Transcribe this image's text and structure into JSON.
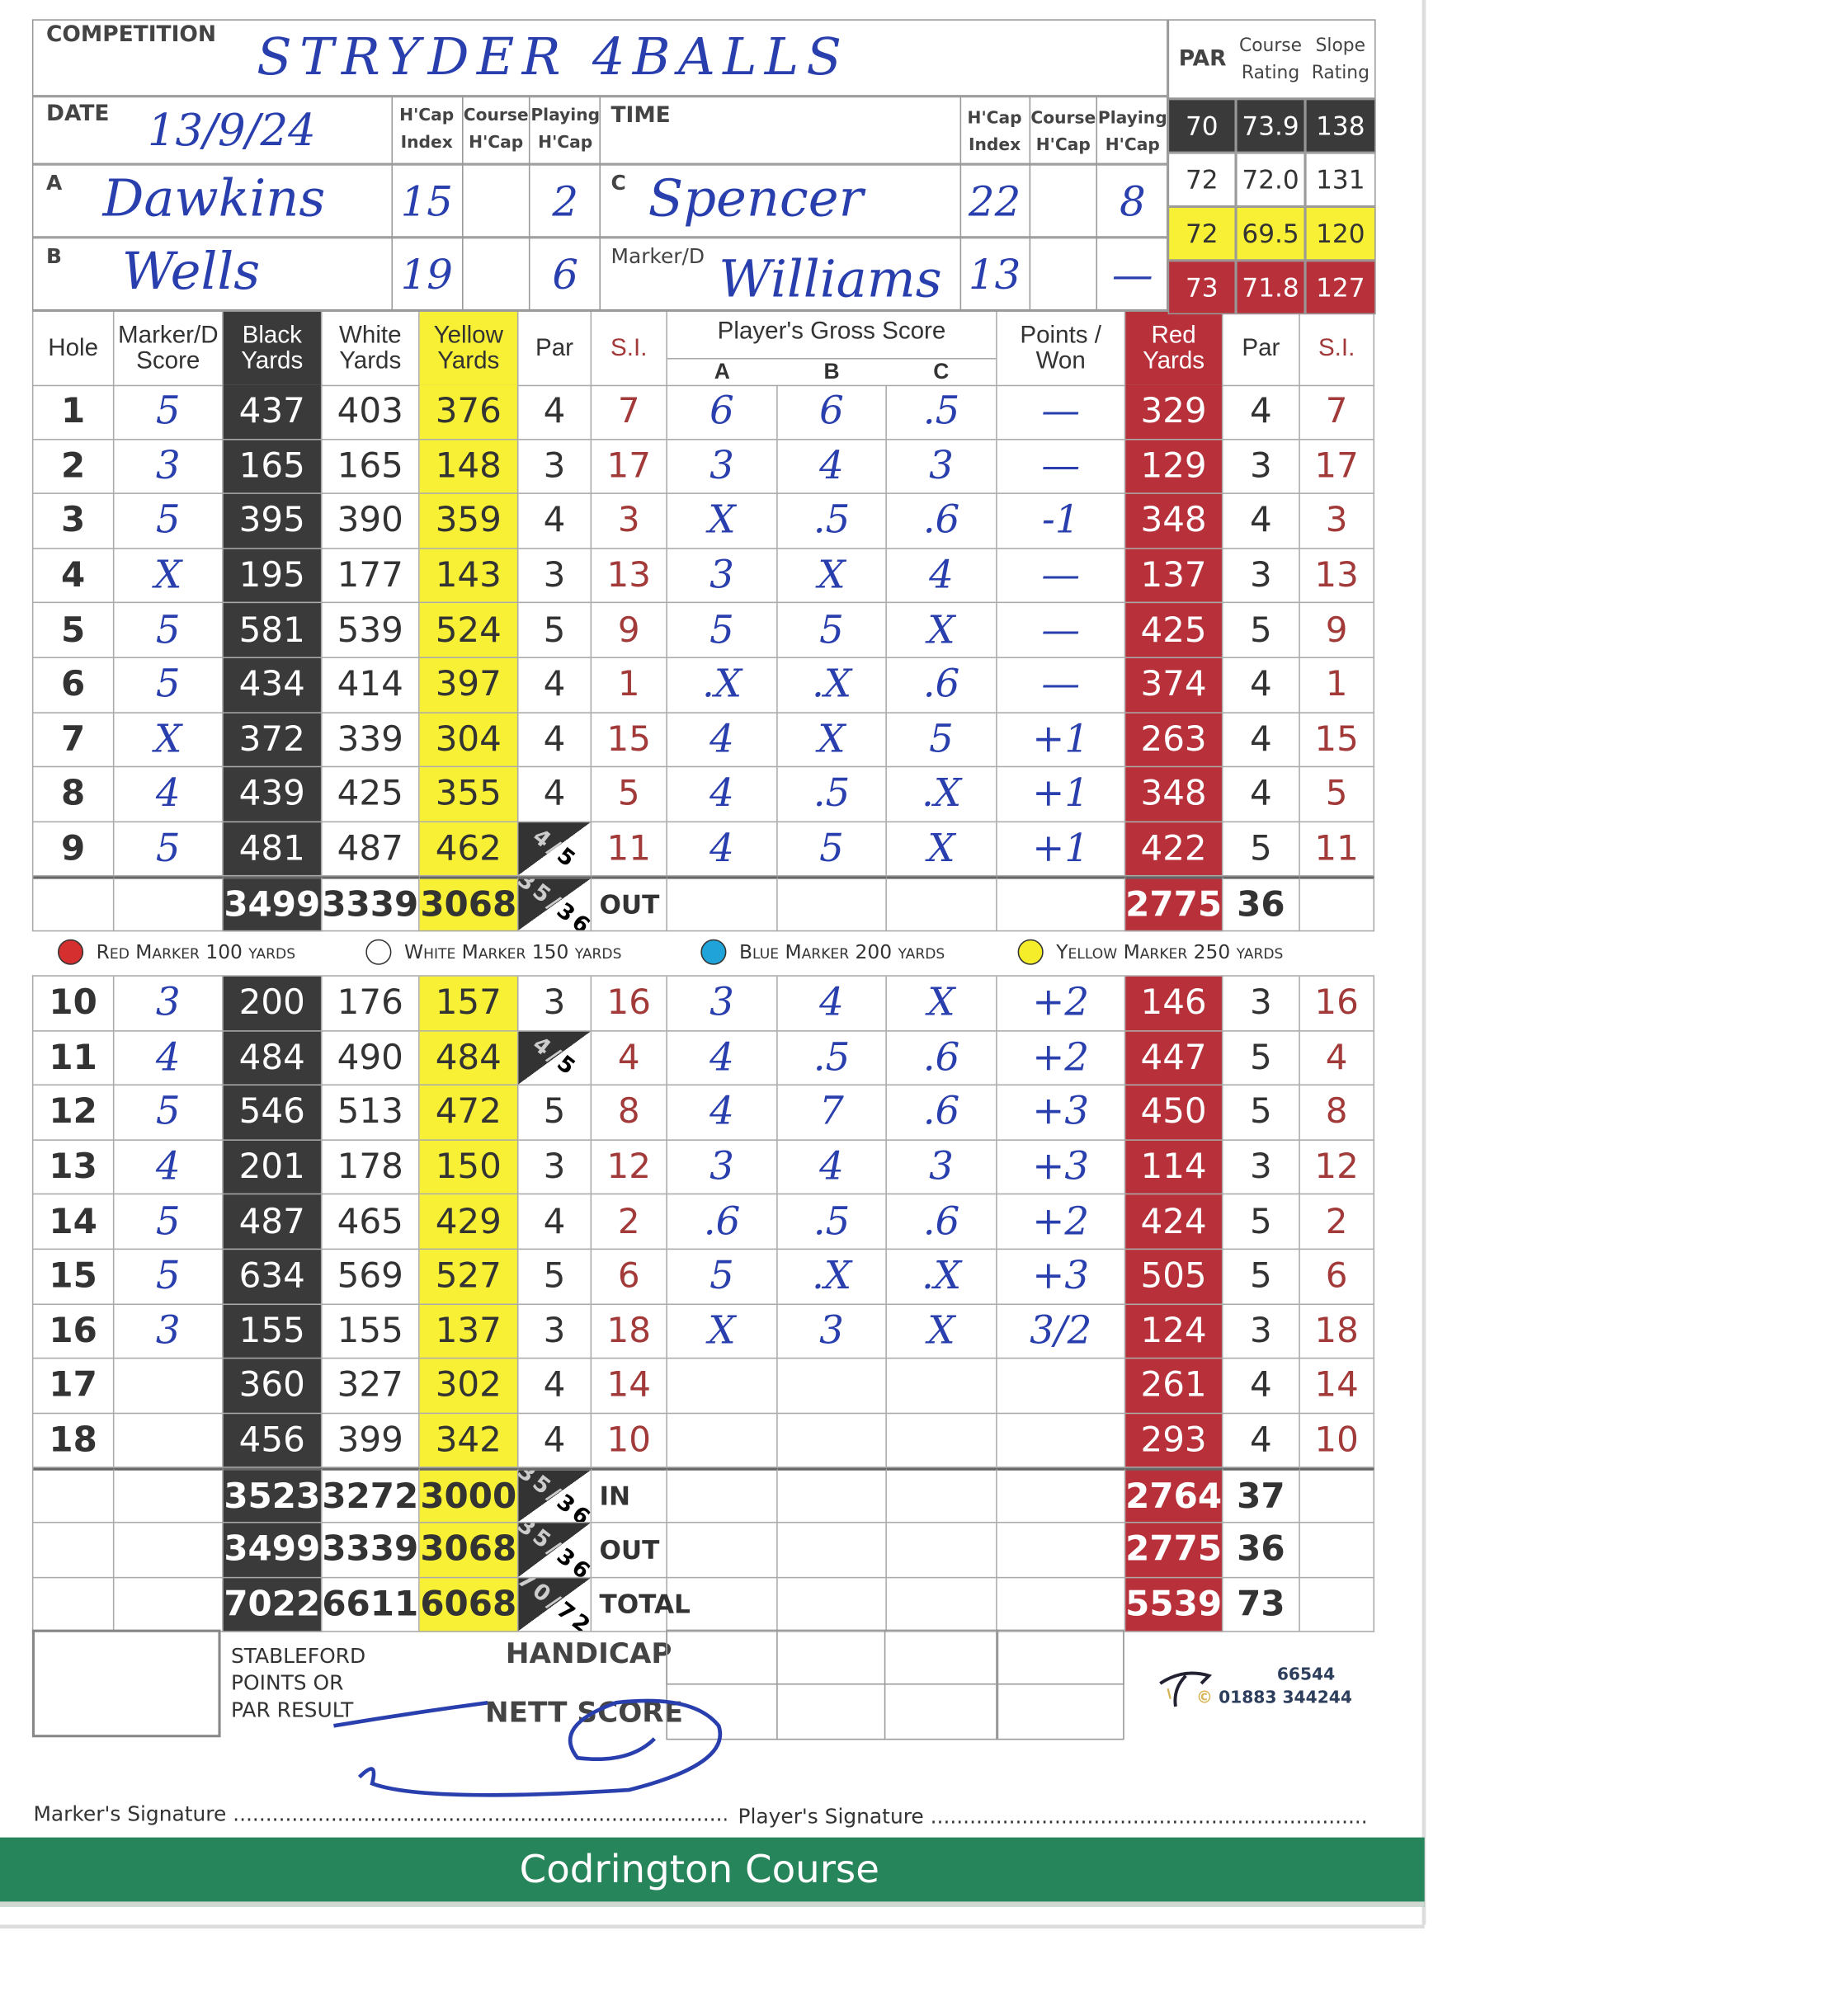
{
  "header": {
    "competition_label": "COMPETITION",
    "competition_value": "STRYDER 4BALLS",
    "date_label": "DATE",
    "date_value": "13/9/24",
    "time_label": "TIME",
    "hcap_index": "H'Cap Index",
    "course_hcap": "Course H'Cap",
    "playing_hcap": "Playing H'Cap",
    "par_label": "PAR",
    "course_rating_label": "Course Rating",
    "slope_rating_label": "Slope Rating",
    "players": [
      {
        "label": "A",
        "name": "Dawkins",
        "hcap_index": "15",
        "course_hcap": "",
        "playing_hcap": "2"
      },
      {
        "label": "B",
        "name": "Wells",
        "hcap_index": "19",
        "course_hcap": "",
        "playing_hcap": "6"
      },
      {
        "label": "C",
        "name": "Spencer",
        "hcap_index": "22",
        "course_hcap": "",
        "playing_hcap": "8"
      },
      {
        "label": "Marker/D",
        "name": "Williams",
        "hcap_index": "13",
        "course_hcap": "",
        "playing_hcap": "—"
      }
    ],
    "ratings": [
      {
        "tee": "black",
        "par": "70",
        "course": "73.9",
        "slope": "138",
        "color": "#3a3a3a"
      },
      {
        "tee": "white",
        "par": "72",
        "course": "72.0",
        "slope": "131",
        "color": "#ffffff"
      },
      {
        "tee": "yellow",
        "par": "72",
        "course": "69.5",
        "slope": "120",
        "color": "#f7f035"
      },
      {
        "tee": "red",
        "par": "73",
        "course": "71.8",
        "slope": "127",
        "color": "#b8313a"
      }
    ]
  },
  "table": {
    "headers": {
      "hole": "Hole",
      "marker": "Marker/D Score",
      "black": "Black Yards",
      "white": "White Yards",
      "yellow": "Yellow Yards",
      "par": "Par",
      "si": "S.I.",
      "gross": "Player's Gross Score",
      "a": "A",
      "b": "B",
      "c": "C",
      "points": "Points / Won",
      "red": "Red Yards",
      "red_par": "Par",
      "red_si": "S.I."
    },
    "front": [
      {
        "hole": "1",
        "marker": "5",
        "black": "437",
        "white": "403",
        "yellow": "376",
        "par": "4",
        "si": "7",
        "a": "6",
        "b": "6",
        "c": ".5",
        "points": "—",
        "red": "329",
        "red_par": "4",
        "red_si": "7"
      },
      {
        "hole": "2",
        "marker": "3",
        "black": "165",
        "white": "165",
        "yellow": "148",
        "par": "3",
        "si": "17",
        "a": "3",
        "b": "4",
        "c": "3",
        "points": "—",
        "red": "129",
        "red_par": "3",
        "red_si": "17"
      },
      {
        "hole": "3",
        "marker": "5",
        "black": "395",
        "white": "390",
        "yellow": "359",
        "par": "4",
        "si": "3",
        "a": "X",
        "b": ".5",
        "c": ".6",
        "points": "-1",
        "red": "348",
        "red_par": "4",
        "red_si": "3"
      },
      {
        "hole": "4",
        "marker": "X",
        "black": "195",
        "white": "177",
        "yellow": "143",
        "par": "3",
        "si": "13",
        "a": "3",
        "b": "X",
        "c": "4",
        "points": "—",
        "red": "137",
        "red_par": "3",
        "red_si": "13"
      },
      {
        "hole": "5",
        "marker": "5",
        "black": "581",
        "white": "539",
        "yellow": "524",
        "par": "5",
        "si": "9",
        "a": "5",
        "b": "5",
        "c": "X",
        "points": "—",
        "red": "425",
        "red_par": "5",
        "red_si": "9"
      },
      {
        "hole": "6",
        "marker": "5",
        "black": "434",
        "white": "414",
        "yellow": "397",
        "par": "4",
        "si": "1",
        "a": ".X",
        "b": ".X",
        "c": ".6",
        "points": "—",
        "red": "374",
        "red_par": "4",
        "red_si": "1"
      },
      {
        "hole": "7",
        "marker": "X",
        "black": "372",
        "white": "339",
        "yellow": "304",
        "par": "4",
        "si": "15",
        "a": "4",
        "b": "X",
        "c": "5",
        "points": "+1",
        "red": "263",
        "red_par": "4",
        "red_si": "15"
      },
      {
        "hole": "8",
        "marker": "4",
        "black": "439",
        "white": "425",
        "yellow": "355",
        "par": "4",
        "si": "5",
        "a": "4",
        "b": ".5",
        "c": ".X",
        "points": "+1",
        "red": "348",
        "red_par": "4",
        "red_si": "5"
      },
      {
        "hole": "9",
        "marker": "5",
        "black": "481",
        "white": "487",
        "yellow": "462",
        "par": "4/5",
        "si": "11",
        "a": "4",
        "b": "5",
        "c": "X",
        "points": "+1",
        "red": "422",
        "red_par": "5",
        "red_si": "11"
      }
    ],
    "out": {
      "black": "3499",
      "white": "3339",
      "yellow": "3068",
      "par": "35/36",
      "label": "OUT",
      "red": "2775",
      "red_par": "36"
    },
    "markers": [
      {
        "label": "Red Marker 100 yards",
        "color": "#d62f2f"
      },
      {
        "label": "White Marker 150 yards",
        "color": "#ffffff"
      },
      {
        "label": "Blue Marker 200 yards",
        "color": "#1fa3d8"
      },
      {
        "label": "Yellow Marker 250 yards",
        "color": "#f5ec2a"
      }
    ],
    "back": [
      {
        "hole": "10",
        "marker": "3",
        "black": "200",
        "white": "176",
        "yellow": "157",
        "par": "3",
        "si": "16",
        "a": "3",
        "b": "4",
        "c": "X",
        "points": "+2",
        "red": "146",
        "red_par": "3",
        "red_si": "16"
      },
      {
        "hole": "11",
        "marker": "4",
        "black": "484",
        "white": "490",
        "yellow": "484",
        "par": "4/5",
        "si": "4",
        "a": "4",
        "b": ".5",
        "c": ".6",
        "points": "+2",
        "red": "447",
        "red_par": "5",
        "red_si": "4"
      },
      {
        "hole": "12",
        "marker": "5",
        "black": "546",
        "white": "513",
        "yellow": "472",
        "par": "5",
        "si": "8",
        "a": "4",
        "b": "7",
        "c": ".6",
        "points": "+3",
        "red": "450",
        "red_par": "5",
        "red_si": "8"
      },
      {
        "hole": "13",
        "marker": "4",
        "black": "201",
        "white": "178",
        "yellow": "150",
        "par": "3",
        "si": "12",
        "a": "3",
        "b": "4",
        "c": "3",
        "points": "+3",
        "red": "114",
        "red_par": "3",
        "red_si": "12"
      },
      {
        "hole": "14",
        "marker": "5",
        "black": "487",
        "white": "465",
        "yellow": "429",
        "par": "4",
        "si": "2",
        "a": ".6",
        "b": ".5",
        "c": ".6",
        "points": "+2",
        "red": "424",
        "red_par": "5",
        "red_si": "2"
      },
      {
        "hole": "15",
        "marker": "5",
        "black": "634",
        "white": "569",
        "yellow": "527",
        "par": "5",
        "si": "6",
        "a": "5",
        "b": ".X",
        "c": ".X",
        "points": "+3",
        "red": "505",
        "red_par": "5",
        "red_si": "6"
      },
      {
        "hole": "16",
        "marker": "3",
        "black": "155",
        "white": "155",
        "yellow": "137",
        "par": "3",
        "si": "18",
        "a": "X",
        "b": "3",
        "c": "X",
        "points": "3/2",
        "red": "124",
        "red_par": "3",
        "red_si": "18"
      },
      {
        "hole": "17",
        "marker": "",
        "black": "360",
        "white": "327",
        "yellow": "302",
        "par": "4",
        "si": "14",
        "a": "",
        "b": "",
        "c": "",
        "points": "",
        "red": "261",
        "red_par": "4",
        "red_si": "14"
      },
      {
        "hole": "18",
        "marker": "",
        "black": "456",
        "white": "399",
        "yellow": "342",
        "par": "4",
        "si": "10",
        "a": "",
        "b": "",
        "c": "",
        "points": "",
        "red": "293",
        "red_par": "4",
        "red_si": "10"
      }
    ],
    "totals": [
      {
        "black": "3523",
        "white": "3272",
        "yellow": "3000",
        "par": "35/36",
        "label": "IN",
        "red": "2764",
        "red_par": "37"
      },
      {
        "black": "3499",
        "white": "3339",
        "yellow": "3068",
        "par": "35/36",
        "label": "OUT",
        "red": "2775",
        "red_par": "36"
      },
      {
        "black": "7022",
        "white": "6611",
        "yellow": "6068",
        "par": "70/72",
        "label": "TOTAL",
        "red": "5539",
        "red_par": "73"
      }
    ]
  },
  "footer": {
    "stableford": "STABLEFORD POINTS OR PAR RESULT",
    "handicap": "HANDICAP",
    "nett_score": "NETT SCORE",
    "printer_code": "66544",
    "printer_phone": "01883 344244",
    "marker_signature": "Marker's Signature ......................................................................................",
    "player_signature": "Player's Signature .........................................................................................",
    "course_name": "Codrington Course",
    "band_color": "#26855a"
  }
}
